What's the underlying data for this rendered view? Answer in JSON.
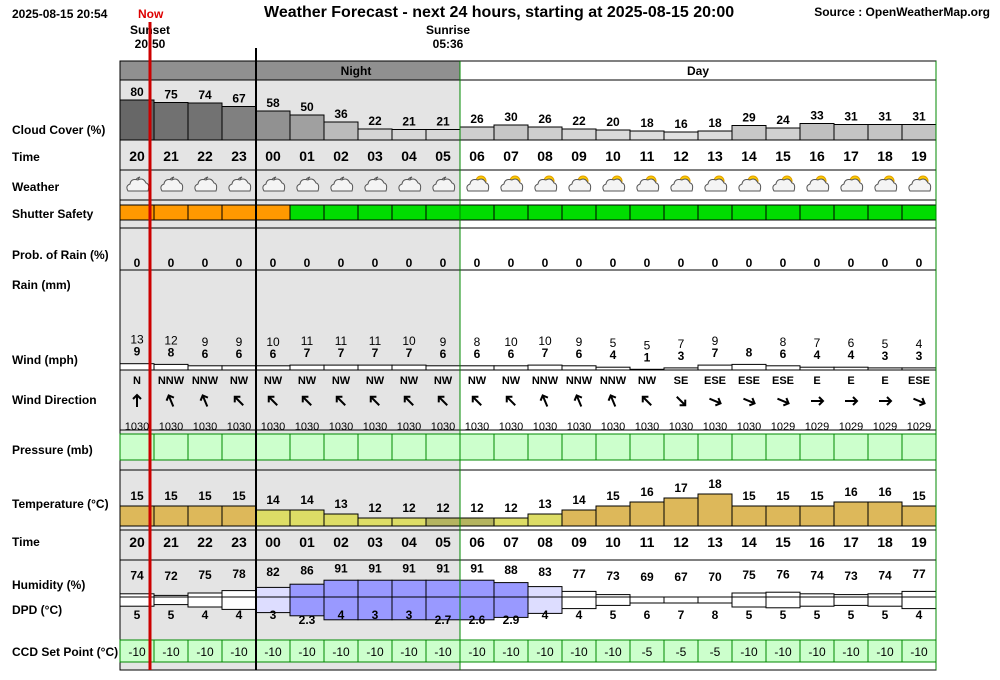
{
  "header": {
    "timestamp": "2025-08-15 20:54",
    "now_label": "Now",
    "title": "Weather Forecast - next 24 hours, starting at 2025-08-15 20:00",
    "source": "Source : OpenWeatherMap.org",
    "sunset_label": "Sunset",
    "sunset_time": "20:50",
    "sunrise_label": "Sunrise",
    "sunrise_time": "05:36"
  },
  "labels": {
    "night": "Night",
    "day": "Day",
    "cloud_cover": "Cloud Cover (%)",
    "time": "Time",
    "weather": "Weather",
    "shutter_safety": "Shutter Safety",
    "prob_rain": "Prob. of Rain (%)",
    "rain": "Rain (mm)",
    "wind": "Wind (mph)",
    "wind_direction": "Wind Direction",
    "pressure": "Pressure (mb)",
    "temperature": "Temperature (°C)",
    "humidity": "Humidity (%)",
    "dpd": "DPD (°C)",
    "ccd": "CCD Set Point (°C)"
  },
  "chart_data": {
    "type": "table",
    "hours": [
      "20",
      "21",
      "22",
      "23",
      "00",
      "01",
      "02",
      "03",
      "04",
      "05",
      "06",
      "07",
      "08",
      "09",
      "10",
      "11",
      "12",
      "13",
      "14",
      "15",
      "16",
      "17",
      "18",
      "19"
    ],
    "cloud_cover": [
      80,
      75,
      74,
      67,
      58,
      50,
      36,
      22,
      21,
      21,
      26,
      30,
      26,
      22,
      20,
      18,
      16,
      18,
      29,
      24,
      33,
      31,
      31,
      31
    ],
    "weather_icon": [
      "partly-cloudy-night-icon",
      "partly-cloudy-night-icon",
      "partly-cloudy-night-icon",
      "partly-cloudy-night-icon",
      "partly-cloudy-night-icon",
      "partly-cloudy-night-icon",
      "partly-cloudy-night-icon",
      "partly-cloudy-night-icon",
      "partly-cloudy-night-icon",
      "partly-cloudy-night-icon",
      "partly-cloudy-day-icon",
      "partly-cloudy-day-icon",
      "partly-cloudy-day-icon",
      "partly-cloudy-day-icon",
      "partly-cloudy-day-icon",
      "partly-cloudy-day-icon",
      "partly-cloudy-day-icon",
      "partly-cloudy-day-icon",
      "partly-cloudy-day-icon",
      "partly-cloudy-day-icon",
      "partly-cloudy-day-icon",
      "partly-cloudy-day-icon",
      "partly-cloudy-day-icon",
      "partly-cloudy-day-icon"
    ],
    "shutter_safety": [
      "unsafe",
      "unsafe",
      "unsafe",
      "unsafe",
      "unsafe",
      "safe",
      "safe",
      "safe",
      "safe",
      "safe",
      "safe",
      "safe",
      "safe",
      "safe",
      "safe",
      "safe",
      "safe",
      "safe",
      "safe",
      "safe",
      "safe",
      "safe",
      "safe",
      "safe"
    ],
    "prob_rain": [
      0,
      0,
      0,
      0,
      0,
      0,
      0,
      0,
      0,
      0,
      0,
      0,
      0,
      0,
      0,
      0,
      0,
      0,
      0,
      0,
      0,
      0,
      0,
      0
    ],
    "wind_gust": [
      13,
      12,
      9,
      9,
      10,
      11,
      11,
      11,
      10,
      9,
      8,
      10,
      10,
      9,
      5,
      5,
      7,
      9,
      null,
      8,
      7,
      6,
      5,
      4
    ],
    "wind_speed": [
      9,
      8,
      6,
      6,
      6,
      7,
      7,
      7,
      7,
      6,
      6,
      6,
      7,
      6,
      4,
      1,
      3,
      7,
      8,
      6,
      4,
      4,
      3,
      3
    ],
    "wind_dir": [
      "N",
      "NNW",
      "NNW",
      "NW",
      "NW",
      "NW",
      "NW",
      "NW",
      "NW",
      "NW",
      "NW",
      "NW",
      "NNW",
      "NNW",
      "NNW",
      "NW",
      "SE",
      "ESE",
      "ESE",
      "ESE",
      "E",
      "E",
      "E",
      "ESE"
    ],
    "pressure": [
      1030,
      1030,
      1030,
      1030,
      1030,
      1030,
      1030,
      1030,
      1030,
      1030,
      1030,
      1030,
      1030,
      1030,
      1030,
      1030,
      1030,
      1030,
      1030,
      1029,
      1029,
      1029,
      1029,
      1029
    ],
    "temperature": [
      15,
      15,
      15,
      15,
      14,
      14,
      13,
      12,
      12,
      12,
      12,
      12,
      13,
      14,
      15,
      16,
      17,
      18,
      15,
      15,
      15,
      16,
      16,
      15
    ],
    "humidity": [
      74,
      72,
      75,
      78,
      82,
      86,
      91,
      91,
      91,
      91,
      91,
      88,
      83,
      77,
      73,
      69,
      67,
      70,
      75,
      76,
      74,
      73,
      74,
      77
    ],
    "dpd": [
      "5",
      "5",
      "4",
      "4",
      "3",
      "2.3",
      "4",
      "3",
      "3",
      "2.7",
      "2.6",
      "2.9",
      "4",
      "4",
      "5",
      "6",
      "7",
      "8",
      "5",
      "5",
      "5",
      "5",
      "5",
      "4"
    ],
    "ccd_set_point": [
      "-10",
      "-10",
      "-10",
      "-10",
      "-10",
      "-10",
      "-10",
      "-10",
      "-10",
      "-10",
      "-10",
      "-10",
      "-10",
      "-10",
      "-10",
      "-5",
      "-5",
      "-5",
      "-10",
      "-10",
      "-10",
      "-10",
      "-10",
      "-10"
    ],
    "night_hours": [
      "20",
      "21",
      "22",
      "23",
      "00",
      "01",
      "02",
      "03",
      "04",
      "05"
    ],
    "colors": {
      "night_shade": "#e4e4e4",
      "night_bar": "#909090",
      "now_line": "#cc0000",
      "safe": "#00dd00",
      "unsafe": "#ff9900",
      "pressure_fill": "#ccffcc",
      "ccd_fill": "#ccffcc",
      "humidity_high": "#9999ff",
      "temperature_warm": "#ddb85a",
      "temperature_cool": "#b5b560",
      "temperature_mild": "#dddd66",
      "grid": "#008800"
    }
  }
}
